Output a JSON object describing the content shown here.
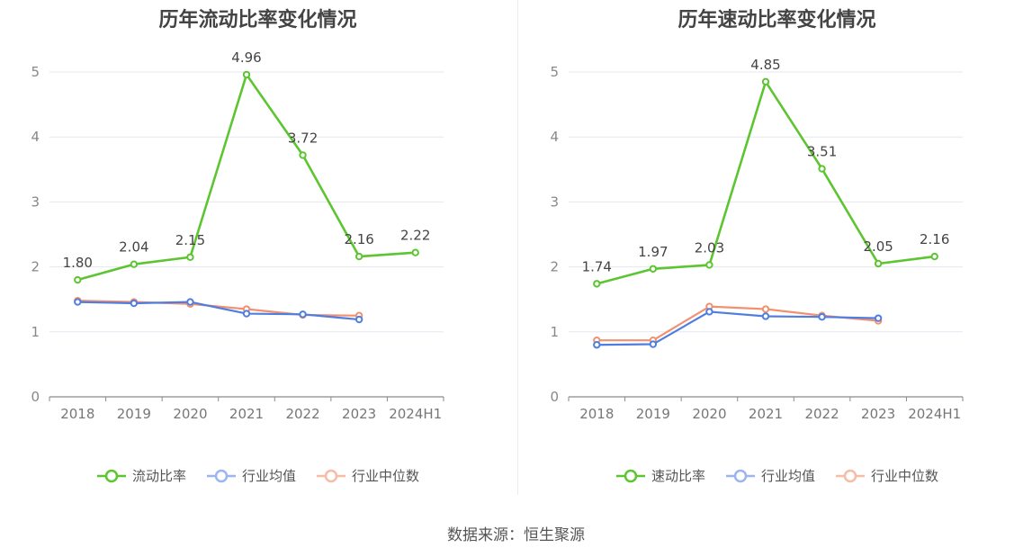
{
  "source_label": "数据来源：恒生聚源",
  "chart_data": [
    {
      "type": "line",
      "title": "历年流动比率变化情况",
      "categories": [
        "2018",
        "2019",
        "2020",
        "2021",
        "2022",
        "2023",
        "2024H1"
      ],
      "ylim": [
        0,
        5
      ],
      "yticks": [
        "0",
        "1",
        "2",
        "3",
        "4",
        "5"
      ],
      "grid": true,
      "legend_position": "bottom",
      "series": [
        {
          "name": "流动比率",
          "color": "#5cc531",
          "values": [
            1.8,
            2.04,
            2.15,
            4.96,
            3.72,
            2.16,
            2.22
          ],
          "labels": [
            "1.80",
            "2.04",
            "2.15",
            "4.96",
            "3.72",
            "2.16",
            "2.22"
          ]
        },
        {
          "name": "行业均值",
          "color": "#4f7ee0",
          "values": [
            1.46,
            1.44,
            1.46,
            1.28,
            1.27,
            1.19,
            null
          ]
        },
        {
          "name": "行业中位数",
          "color": "#f19170",
          "values": [
            1.48,
            1.46,
            1.43,
            1.35,
            1.26,
            1.25,
            null
          ]
        }
      ]
    },
    {
      "type": "line",
      "title": "历年速动比率变化情况",
      "categories": [
        "2018",
        "2019",
        "2020",
        "2021",
        "2022",
        "2023",
        "2024H1"
      ],
      "ylim": [
        0,
        5
      ],
      "yticks": [
        "0",
        "1",
        "2",
        "3",
        "4",
        "5"
      ],
      "grid": true,
      "legend_position": "bottom",
      "series": [
        {
          "name": "速动比率",
          "color": "#5cc531",
          "values": [
            1.74,
            1.97,
            2.03,
            4.85,
            3.51,
            2.05,
            2.16
          ],
          "labels": [
            "1.74",
            "1.97",
            "2.03",
            "4.85",
            "3.51",
            "2.05",
            "2.16"
          ]
        },
        {
          "name": "行业均值",
          "color": "#4f7ee0",
          "values": [
            0.8,
            0.81,
            1.31,
            1.24,
            1.23,
            1.21,
            null
          ]
        },
        {
          "name": "行业中位数",
          "color": "#f19170",
          "values": [
            0.87,
            0.87,
            1.39,
            1.35,
            1.25,
            1.17,
            null
          ]
        }
      ]
    }
  ]
}
